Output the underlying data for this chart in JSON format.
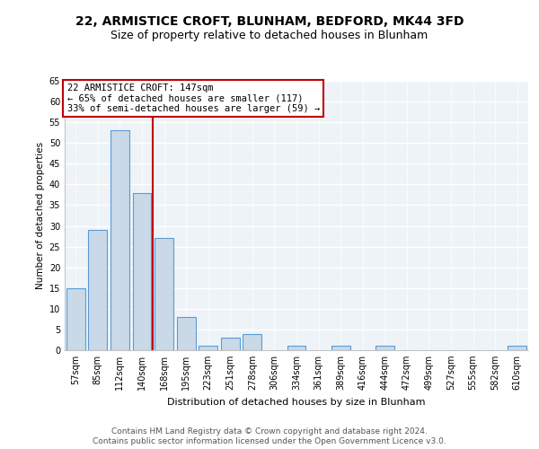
{
  "title1": "22, ARMISTICE CROFT, BLUNHAM, BEDFORD, MK44 3FD",
  "title2": "Size of property relative to detached houses in Blunham",
  "xlabel": "Distribution of detached houses by size in Blunham",
  "ylabel": "Number of detached properties",
  "categories": [
    "57sqm",
    "85sqm",
    "112sqm",
    "140sqm",
    "168sqm",
    "195sqm",
    "223sqm",
    "251sqm",
    "278sqm",
    "306sqm",
    "334sqm",
    "361sqm",
    "389sqm",
    "416sqm",
    "444sqm",
    "472sqm",
    "499sqm",
    "527sqm",
    "555sqm",
    "582sqm",
    "610sqm"
  ],
  "values": [
    15,
    29,
    53,
    38,
    27,
    8,
    1,
    3,
    4,
    0,
    1,
    0,
    1,
    0,
    1,
    0,
    0,
    0,
    0,
    0,
    1
  ],
  "bar_color": "#c9d9e8",
  "bar_edge_color": "#5b9bd5",
  "bar_linewidth": 0.8,
  "vline_x": 3.5,
  "vline_color": "#c00000",
  "annotation_title": "22 ARMISTICE CROFT: 147sqm",
  "annotation_line1": "← 65% of detached houses are smaller (117)",
  "annotation_line2": "33% of semi-detached houses are larger (59) →",
  "annotation_box_color": "#c00000",
  "ylim": [
    0,
    65
  ],
  "yticks": [
    0,
    5,
    10,
    15,
    20,
    25,
    30,
    35,
    40,
    45,
    50,
    55,
    60,
    65
  ],
  "footnote1": "Contains HM Land Registry data © Crown copyright and database right 2024.",
  "footnote2": "Contains public sector information licensed under the Open Government Licence v3.0.",
  "bg_color": "#eef3f8",
  "grid_color": "#ffffff",
  "title1_fontsize": 10,
  "title2_fontsize": 9,
  "xlabel_fontsize": 8,
  "ylabel_fontsize": 7.5,
  "tick_fontsize": 7,
  "annotation_fontsize": 7.5,
  "footnote_fontsize": 6.5
}
